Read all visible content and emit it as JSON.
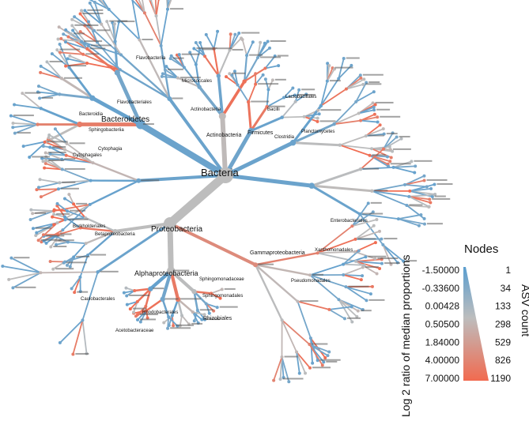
{
  "colors": {
    "low": "#5b9ecf",
    "mid": "#bdbdbd",
    "high": "#f26a4f"
  },
  "legend": {
    "title": "Nodes",
    "color_axis_label": "Log 2 ratio of median proportions",
    "size_axis_label": "ASV count",
    "color_ticks": [
      "-1.50000",
      "-0.33600",
      "0.00428",
      "0.50500",
      "1.84000",
      "4.00000",
      "7.00000"
    ],
    "size_ticks": [
      "1",
      "34",
      "133",
      "298",
      "529",
      "826",
      "1190"
    ]
  },
  "tree": {
    "root": "Bacteria",
    "major_labels": [
      {
        "id": "bacteria",
        "text": "Bacteria"
      },
      {
        "id": "proteobacteria",
        "text": "Proteobacteria"
      },
      {
        "id": "alphaproteobacteria",
        "text": "Alphaproteobacteria"
      },
      {
        "id": "gammaproteobacteria",
        "text": "Gammaproteobacteria"
      },
      {
        "id": "betaproteobacteria",
        "text": "Betaproteobacteria"
      },
      {
        "id": "bacteroidetes",
        "text": "Bacteroidetes"
      },
      {
        "id": "actinobacteria",
        "text": "Actinobacteria"
      },
      {
        "id": "actinobacteria2",
        "text": "Actinobacteria"
      },
      {
        "id": "firmicutes",
        "text": "Firmicutes"
      },
      {
        "id": "bacteroidia",
        "text": "Bacteroidia"
      },
      {
        "id": "cytophagia",
        "text": "Cytophagia"
      },
      {
        "id": "cytophagales",
        "text": "Cytophagales"
      },
      {
        "id": "sphingobacteriia",
        "text": "Sphingobacteriia"
      },
      {
        "id": "bacilli",
        "text": "Bacilli"
      },
      {
        "id": "rhizobiales",
        "text": "Rhizobiales"
      },
      {
        "id": "sphingomonadales",
        "text": "Sphingomonadales"
      },
      {
        "id": "sphingomonadaceae",
        "text": "Sphingomonadaceae"
      },
      {
        "id": "rhodobacterales",
        "text": "Rhodobacterales"
      },
      {
        "id": "burkholderiales",
        "text": "Burkholderiales"
      },
      {
        "id": "enterobacteriales",
        "text": "Enterobacteriales"
      },
      {
        "id": "pseudomonadales",
        "text": "Pseudomonadales"
      },
      {
        "id": "micrococcales",
        "text": "Micrococcales"
      },
      {
        "id": "flavobacteriia",
        "text": "Flavobacteriia"
      },
      {
        "id": "flavobacteriales",
        "text": "Flavobacteriales"
      },
      {
        "id": "acetobacteraceae",
        "text": "Acetobacteraceae"
      },
      {
        "id": "caulobacterales",
        "text": "Caulobacterales"
      },
      {
        "id": "xanthomonadales",
        "text": "Xanthomonadales"
      },
      {
        "id": "clostridia",
        "text": "Clostridia"
      },
      {
        "id": "lactobacillales",
        "text": "Lactobacillales"
      },
      {
        "id": "planctomycetes",
        "text": "Planctomycetes"
      }
    ]
  }
}
